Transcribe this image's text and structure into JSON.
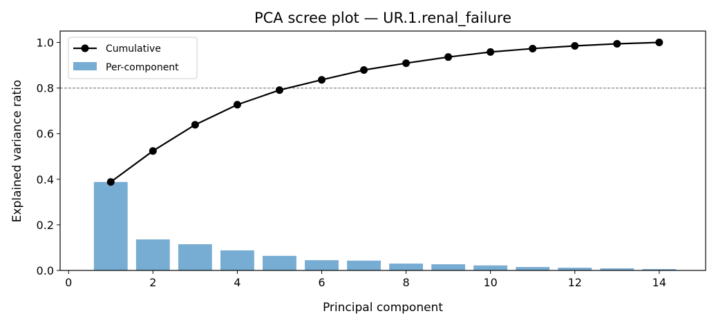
{
  "chart_data": {
    "type": "bar+line",
    "title": "PCA scree plot — UR.1.renal_failure",
    "xlabel": "Principal component",
    "ylabel": "Explained variance ratio",
    "xlim": [
      -0.2,
      15.1
    ],
    "ylim": [
      0,
      1.05
    ],
    "xticks": [
      0,
      2,
      4,
      6,
      8,
      10,
      12,
      14
    ],
    "yticks": [
      "0.0",
      "0.2",
      "0.4",
      "0.6",
      "0.8",
      "1.0"
    ],
    "x": [
      1,
      2,
      3,
      4,
      5,
      6,
      7,
      8,
      9,
      10,
      11,
      12,
      13,
      14
    ],
    "series": [
      {
        "name": "Cumulative",
        "type": "line",
        "color": "#000000",
        "values": [
          0.388,
          0.524,
          0.639,
          0.727,
          0.791,
          0.836,
          0.879,
          0.909,
          0.936,
          0.958,
          0.973,
          0.985,
          0.994,
          1.0
        ]
      },
      {
        "name": "Per-component",
        "type": "bar",
        "color": "#77acd3",
        "values": [
          0.388,
          0.136,
          0.115,
          0.088,
          0.064,
          0.045,
          0.043,
          0.03,
          0.027,
          0.022,
          0.015,
          0.012,
          0.009,
          0.006
        ]
      }
    ],
    "threshold": {
      "y": 0.8,
      "style": "dashed",
      "color": "#808080"
    },
    "legend_position": "top-left",
    "grid": false
  }
}
